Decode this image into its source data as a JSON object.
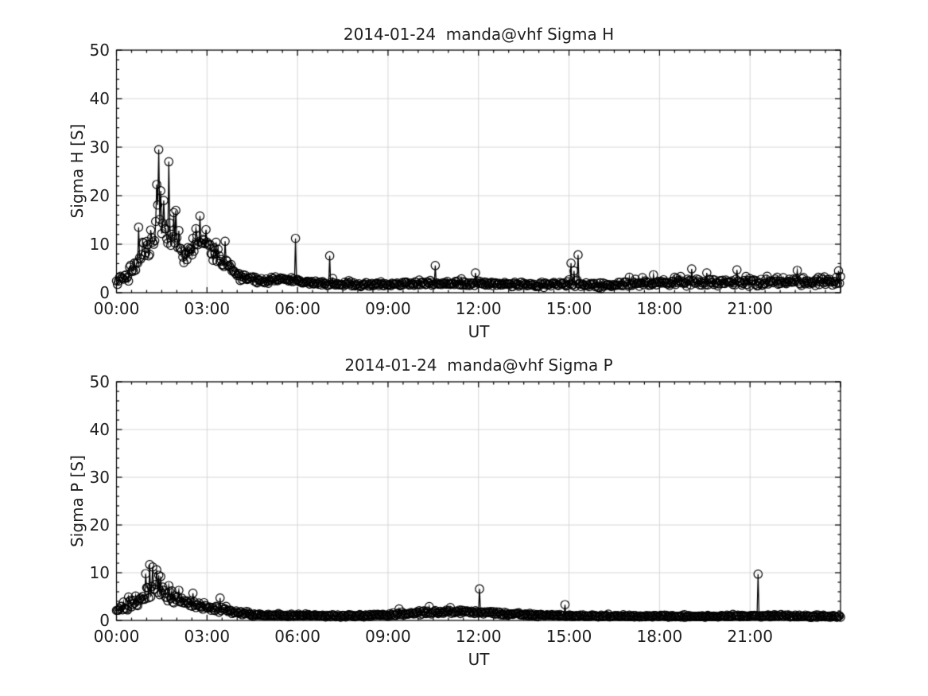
{
  "figure": {
    "background": "#ffffff",
    "text_color": "#1f1f1f",
    "grid_color": "#d6d6d6",
    "line_color": "#000000"
  },
  "chart_data": [
    {
      "type": "line",
      "title": "2014-01-24  manda@vhf Sigma H",
      "xlabel": "UT",
      "ylabel": "Sigma H [S]",
      "xlim": [
        0,
        24
      ],
      "ylim": [
        0,
        50
      ],
      "xticks": [
        0,
        3,
        6,
        9,
        12,
        15,
        18,
        21,
        24
      ],
      "xtick_labels": [
        "00:00",
        "03:00",
        "06:00",
        "09:00",
        "12:00",
        "15:00",
        "18:00",
        "21:00",
        ""
      ],
      "yticks": [
        0,
        10,
        20,
        30,
        40,
        50
      ],
      "ytick_labels": [
        "0",
        "10",
        "20",
        "30",
        "40",
        "50"
      ],
      "x_minor_step": 0.5,
      "y_minor_step": 2,
      "grid": true,
      "legend": "none",
      "marker": "open-circle",
      "cadence_minutes": 2,
      "noise": {
        "seed": 20140124,
        "spike_prob": 0.05,
        "spike_scale": 1.6,
        "floor": 0.3
      },
      "envelope_mean": [
        [
          0,
          2.3
        ],
        [
          0.25,
          2.8
        ],
        [
          0.5,
          4.5
        ],
        [
          0.7,
          6.5
        ],
        [
          0.9,
          8
        ],
        [
          1.1,
          10
        ],
        [
          1.3,
          14
        ],
        [
          1.45,
          15
        ],
        [
          1.6,
          13
        ],
        [
          1.8,
          11.5
        ],
        [
          2,
          10
        ],
        [
          2.2,
          8
        ],
        [
          2.35,
          7
        ],
        [
          2.6,
          10
        ],
        [
          2.9,
          11
        ],
        [
          3.1,
          9
        ],
        [
          3.4,
          7.5
        ],
        [
          3.7,
          6
        ],
        [
          3.9,
          4.5
        ],
        [
          4.2,
          3.2
        ],
        [
          4.6,
          2.6
        ],
        [
          5,
          2.4
        ],
        [
          5.4,
          2.8
        ],
        [
          5.9,
          2.6
        ],
        [
          6.3,
          2.2
        ],
        [
          7,
          1.9
        ],
        [
          8,
          1.7
        ],
        [
          9,
          1.8
        ],
        [
          10,
          1.9
        ],
        [
          11,
          2
        ],
        [
          12,
          1.9
        ],
        [
          13,
          1.7
        ],
        [
          14,
          1.6
        ],
        [
          15,
          1.9
        ],
        [
          16,
          1.5
        ],
        [
          17,
          1.8
        ],
        [
          18,
          1.9
        ],
        [
          19,
          2.2
        ],
        [
          20,
          2.1
        ],
        [
          21,
          2
        ],
        [
          22,
          2.2
        ],
        [
          23,
          2.3
        ],
        [
          24,
          2.5
        ]
      ],
      "envelope_jitter": [
        [
          0,
          0.9
        ],
        [
          0.5,
          1.6
        ],
        [
          1,
          3.2
        ],
        [
          1.5,
          4.2
        ],
        [
          2,
          3
        ],
        [
          2.6,
          2.6
        ],
        [
          3.2,
          2.2
        ],
        [
          3.8,
          1.6
        ],
        [
          4.3,
          0.9
        ],
        [
          5,
          0.7
        ],
        [
          6,
          0.6
        ],
        [
          8,
          0.5
        ],
        [
          12,
          0.55
        ],
        [
          15,
          0.7
        ],
        [
          17,
          0.7
        ],
        [
          19,
          0.9
        ],
        [
          21,
          0.9
        ],
        [
          23,
          1
        ],
        [
          24,
          1
        ]
      ],
      "spikes": [
        [
          0.72,
          13.5
        ],
        [
          1.33,
          22.3
        ],
        [
          1.4,
          29.5
        ],
        [
          1.47,
          21
        ],
        [
          1.55,
          19
        ],
        [
          1.73,
          27
        ],
        [
          1.9,
          16.5
        ],
        [
          2.08,
          12.8
        ],
        [
          2.62,
          13.2
        ],
        [
          2.78,
          15.8
        ],
        [
          2.95,
          13
        ],
        [
          3.3,
          10.4
        ],
        [
          3.6,
          10.6
        ],
        [
          5.92,
          11.2
        ],
        [
          7.05,
          7.6
        ],
        [
          10.55,
          5.6
        ],
        [
          11.9,
          4.1
        ],
        [
          15.08,
          6.1
        ],
        [
          15.18,
          4.5
        ],
        [
          15.3,
          7.8
        ],
        [
          17,
          3.2
        ],
        [
          17.8,
          3.7
        ],
        [
          18.5,
          3.2
        ],
        [
          19.05,
          4.9
        ],
        [
          19.55,
          4.1
        ],
        [
          20.55,
          4.7
        ],
        [
          21.55,
          3.4
        ],
        [
          22.1,
          3.1
        ],
        [
          22.55,
          4.6
        ],
        [
          23.25,
          3.2
        ],
        [
          23.92,
          4.5
        ]
      ]
    },
    {
      "type": "line",
      "title": "2014-01-24  manda@vhf Sigma P",
      "xlabel": "UT",
      "ylabel": "Sigma P [S]",
      "xlim": [
        0,
        24
      ],
      "ylim": [
        0,
        50
      ],
      "xticks": [
        0,
        3,
        6,
        9,
        12,
        15,
        18,
        21,
        24
      ],
      "xtick_labels": [
        "00:00",
        "03:00",
        "06:00",
        "09:00",
        "12:00",
        "15:00",
        "18:00",
        "21:00",
        ""
      ],
      "yticks": [
        0,
        10,
        20,
        30,
        40,
        50
      ],
      "ytick_labels": [
        "0",
        "10",
        "20",
        "30",
        "40",
        "50"
      ],
      "x_minor_step": 0.5,
      "y_minor_step": 2,
      "grid": true,
      "legend": "none",
      "marker": "open-circle",
      "cadence_minutes": 2,
      "noise": {
        "seed": 987654,
        "spike_prob": 0.04,
        "spike_scale": 1.5,
        "floor": 0.25
      },
      "envelope_mean": [
        [
          0,
          2.6
        ],
        [
          0.3,
          3
        ],
        [
          0.6,
          3.6
        ],
        [
          0.8,
          4.3
        ],
        [
          1,
          5.5
        ],
        [
          1.15,
          6.5
        ],
        [
          1.3,
          6.8
        ],
        [
          1.5,
          6
        ],
        [
          1.7,
          5.3
        ],
        [
          2,
          4.4
        ],
        [
          2.3,
          3.8
        ],
        [
          2.6,
          3.3
        ],
        [
          3,
          2.7
        ],
        [
          3.3,
          2.3
        ],
        [
          3.7,
          2.1
        ],
        [
          4.1,
          1.6
        ],
        [
          4.6,
          1.2
        ],
        [
          5.2,
          1
        ],
        [
          6,
          1.1
        ],
        [
          7,
          0.95
        ],
        [
          8,
          0.95
        ],
        [
          9,
          1.15
        ],
        [
          9.8,
          1.5
        ],
        [
          10.6,
          1.75
        ],
        [
          11.3,
          1.85
        ],
        [
          12,
          1.75
        ],
        [
          12.8,
          1.45
        ],
        [
          13.6,
          1.15
        ],
        [
          14.6,
          1
        ],
        [
          16,
          0.9
        ],
        [
          18,
          0.9
        ],
        [
          20,
          0.85
        ],
        [
          21,
          0.9
        ],
        [
          22,
          1
        ],
        [
          23,
          0.9
        ],
        [
          24,
          0.8
        ]
      ],
      "envelope_jitter": [
        [
          0,
          0.9
        ],
        [
          0.5,
          1.3
        ],
        [
          1,
          2
        ],
        [
          1.5,
          1.9
        ],
        [
          2,
          1.4
        ],
        [
          2.6,
          1.1
        ],
        [
          3.2,
          0.9
        ],
        [
          4,
          0.6
        ],
        [
          5,
          0.35
        ],
        [
          7,
          0.3
        ],
        [
          9,
          0.4
        ],
        [
          10.5,
          0.5
        ],
        [
          12,
          0.5
        ],
        [
          13.5,
          0.4
        ],
        [
          15,
          0.3
        ],
        [
          18,
          0.28
        ],
        [
          21,
          0.3
        ],
        [
          22.5,
          0.35
        ],
        [
          24,
          0.3
        ]
      ],
      "spikes": [
        [
          0.4,
          4.9
        ],
        [
          0.62,
          5.1
        ],
        [
          0.95,
          9.8
        ],
        [
          1.1,
          11.7
        ],
        [
          1.2,
          11.2
        ],
        [
          1.32,
          10.6
        ],
        [
          1.47,
          9.2
        ],
        [
          1.72,
          7.3
        ],
        [
          2.07,
          6.3
        ],
        [
          2.52,
          5.7
        ],
        [
          3.42,
          4.7
        ],
        [
          9.35,
          2.4
        ],
        [
          10.35,
          2.9
        ],
        [
          11.05,
          2.7
        ],
        [
          12.02,
          6.6
        ],
        [
          14.85,
          3.3
        ],
        [
          21.27,
          9.7
        ]
      ]
    }
  ]
}
